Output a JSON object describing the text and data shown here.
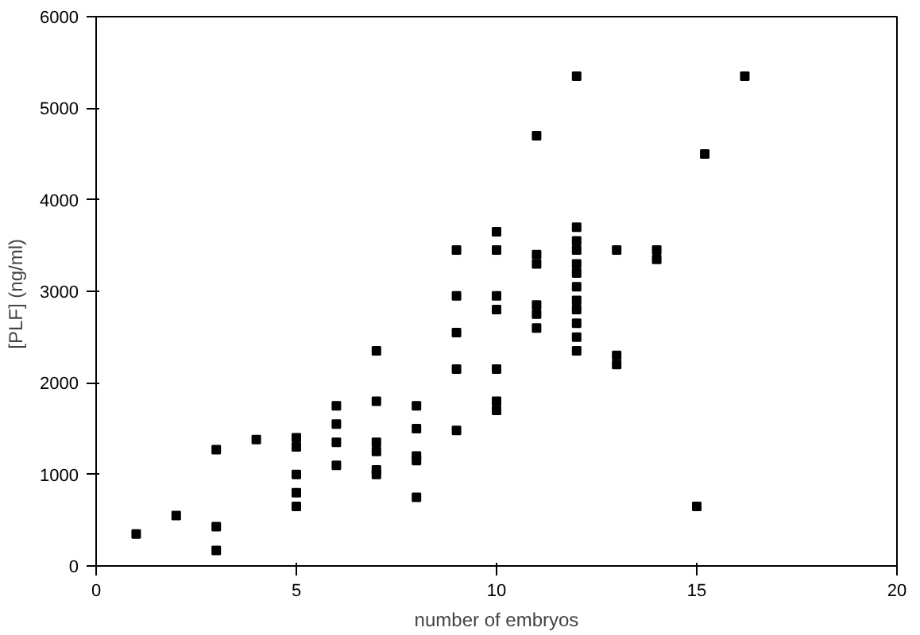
{
  "chart_data": {
    "type": "scatter",
    "xlabel": "number of embryos",
    "ylabel": "[PLF]  (ng/ml)",
    "x": [
      1,
      2,
      3,
      3,
      3,
      4,
      5,
      5,
      5,
      5,
      5,
      6,
      6,
      6,
      6,
      7,
      7,
      7,
      7,
      7,
      7,
      8,
      8,
      8,
      8,
      8,
      9,
      9,
      9,
      9,
      9,
      10,
      10,
      10,
      10,
      10,
      10,
      10,
      11,
      11,
      11,
      11,
      11,
      11,
      12,
      12,
      12,
      12,
      12,
      12,
      12,
      12,
      12,
      12,
      12,
      12,
      13,
      13,
      13,
      14,
      14,
      15,
      15.2,
      16.2
    ],
    "values": [
      350,
      550,
      1270,
      430,
      170,
      1380,
      1400,
      1300,
      1000,
      800,
      650,
      1750,
      1550,
      1350,
      1100,
      2350,
      1800,
      1350,
      1250,
      1050,
      1000,
      1750,
      1500,
      1200,
      1150,
      750,
      3450,
      2950,
      2550,
      2150,
      1480,
      3650,
      3450,
      2950,
      2800,
      2150,
      1800,
      1700,
      4700,
      3400,
      3300,
      2850,
      2750,
      2600,
      5350,
      3700,
      3550,
      3450,
      3300,
      3200,
      3050,
      2900,
      2800,
      2650,
      2500,
      2350,
      3450,
      2300,
      2200,
      3450,
      3350,
      650,
      4500,
      5350
    ],
    "color": "#000000",
    "marker": "square",
    "xlim": [
      0,
      20
    ],
    "ylim": [
      0,
      6000
    ],
    "xticks": [
      0,
      5,
      10,
      15,
      20
    ],
    "yticks": [
      0,
      1000,
      2000,
      3000,
      4000,
      5000,
      6000
    ],
    "grid": false
  }
}
